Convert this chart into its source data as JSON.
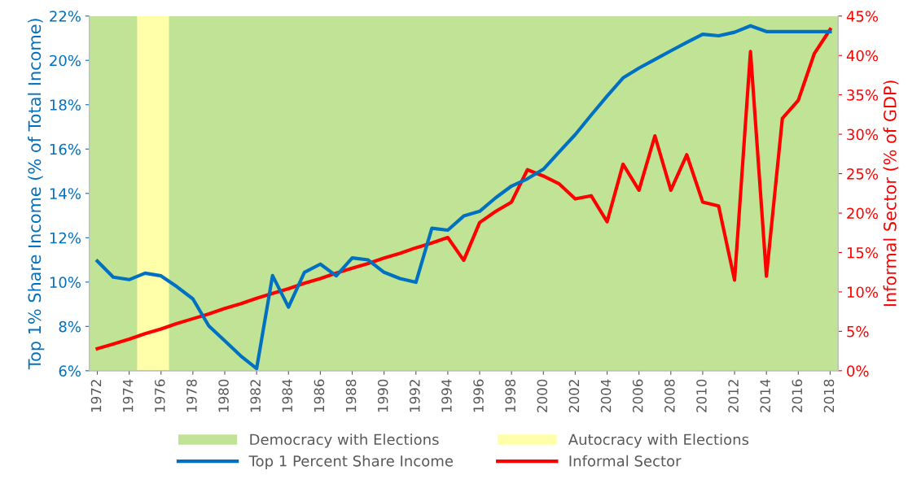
{
  "chart_data": {
    "type": "line",
    "ylabel": "Top 1% Share Income (% of Total Income)",
    "y2label": "Informal Sector (% of GDP)",
    "x": [
      1972,
      1973,
      1974,
      1975,
      1976,
      1977,
      1978,
      1979,
      1980,
      1981,
      1982,
      1983,
      1984,
      1985,
      1986,
      1987,
      1988,
      1989,
      1990,
      1991,
      1992,
      1993,
      1994,
      1995,
      1996,
      1997,
      1998,
      1999,
      2000,
      2001,
      2002,
      2003,
      2004,
      2005,
      2006,
      2007,
      2008,
      2009,
      2010,
      2011,
      2012,
      2013,
      2014,
      2015,
      2016,
      2017,
      2018
    ],
    "series": [
      {
        "name": "Top 1 Percent Share Income",
        "color": "#0070c0",
        "values": [
          10.95,
          10.22,
          10.11,
          10.4,
          10.28,
          9.79,
          9.24,
          8.02,
          7.35,
          6.67,
          6.1,
          10.29,
          8.87,
          10.44,
          10.81,
          10.28,
          11.09,
          11.0,
          10.44,
          10.16,
          9.99,
          12.43,
          12.34,
          12.98,
          13.19,
          13.8,
          14.33,
          14.66,
          15.09,
          15.88,
          16.65,
          17.53,
          18.39,
          19.21,
          19.65,
          20.04,
          20.43,
          20.81,
          21.18,
          21.11,
          21.27,
          21.56,
          21.3,
          21.3,
          21.3,
          21.3,
          21.3
        ]
      },
      {
        "name": "Informal Sector",
        "color": "#ff0000",
        "axis": "y2",
        "values": [
          2.8,
          3.4,
          4.0,
          4.7,
          5.3,
          6.0,
          6.6,
          7.2,
          7.9,
          8.5,
          9.2,
          9.8,
          10.4,
          11.1,
          11.7,
          12.4,
          13.0,
          13.6,
          14.3,
          14.9,
          15.6,
          16.2,
          16.9,
          14.0,
          18.8,
          20.2,
          21.4,
          25.5,
          24.7,
          23.7,
          21.8,
          22.2,
          18.9,
          26.2,
          22.9,
          29.8,
          22.9,
          27.4,
          21.4,
          20.9,
          11.5,
          40.5,
          12.0,
          32.0,
          34.3,
          40.2,
          43.3
        ]
      }
    ],
    "xlim": [
      1971.5,
      2018.5
    ],
    "xticks": [
      1972,
      1974,
      1976,
      1978,
      1980,
      1982,
      1984,
      1986,
      1988,
      1990,
      1992,
      1994,
      1996,
      1998,
      2000,
      2002,
      2004,
      2006,
      2008,
      2010,
      2012,
      2014,
      2016,
      2018
    ],
    "ylim": [
      6,
      22
    ],
    "yticks": [
      {
        "value": 6,
        "label": "6%"
      },
      {
        "value": 8,
        "label": "8%"
      },
      {
        "value": 10,
        "label": "10%"
      },
      {
        "value": 12,
        "label": "12%"
      },
      {
        "value": 14,
        "label": "14%"
      },
      {
        "value": 16,
        "label": "16%"
      },
      {
        "value": 18,
        "label": "18%"
      },
      {
        "value": 20,
        "label": "20%"
      },
      {
        "value": 22,
        "label": "22%"
      }
    ],
    "y2lim": [
      0,
      45
    ],
    "y2ticks": [
      {
        "value": 0,
        "label": "0%"
      },
      {
        "value": 5,
        "label": "5%"
      },
      {
        "value": 10,
        "label": "10%"
      },
      {
        "value": 15,
        "label": "15%"
      },
      {
        "value": 20,
        "label": "20%"
      },
      {
        "value": 25,
        "label": "25%"
      },
      {
        "value": 30,
        "label": "30%"
      },
      {
        "value": 35,
        "label": "35%"
      },
      {
        "value": 40,
        "label": "40%"
      },
      {
        "value": 45,
        "label": "45%"
      }
    ],
    "bands": [
      {
        "axis": "x",
        "from": 1971.5,
        "to": 2018.5,
        "label": "Democracy with Elections",
        "color": "#c0e396"
      },
      {
        "axis": "x",
        "from": 1974.5,
        "to": 1976.5,
        "label": "Autocracy with Elections",
        "color": "#ffffaa"
      }
    ],
    "grid": false,
    "legend": "bottom",
    "marker": "none",
    "line_style": "solid"
  }
}
